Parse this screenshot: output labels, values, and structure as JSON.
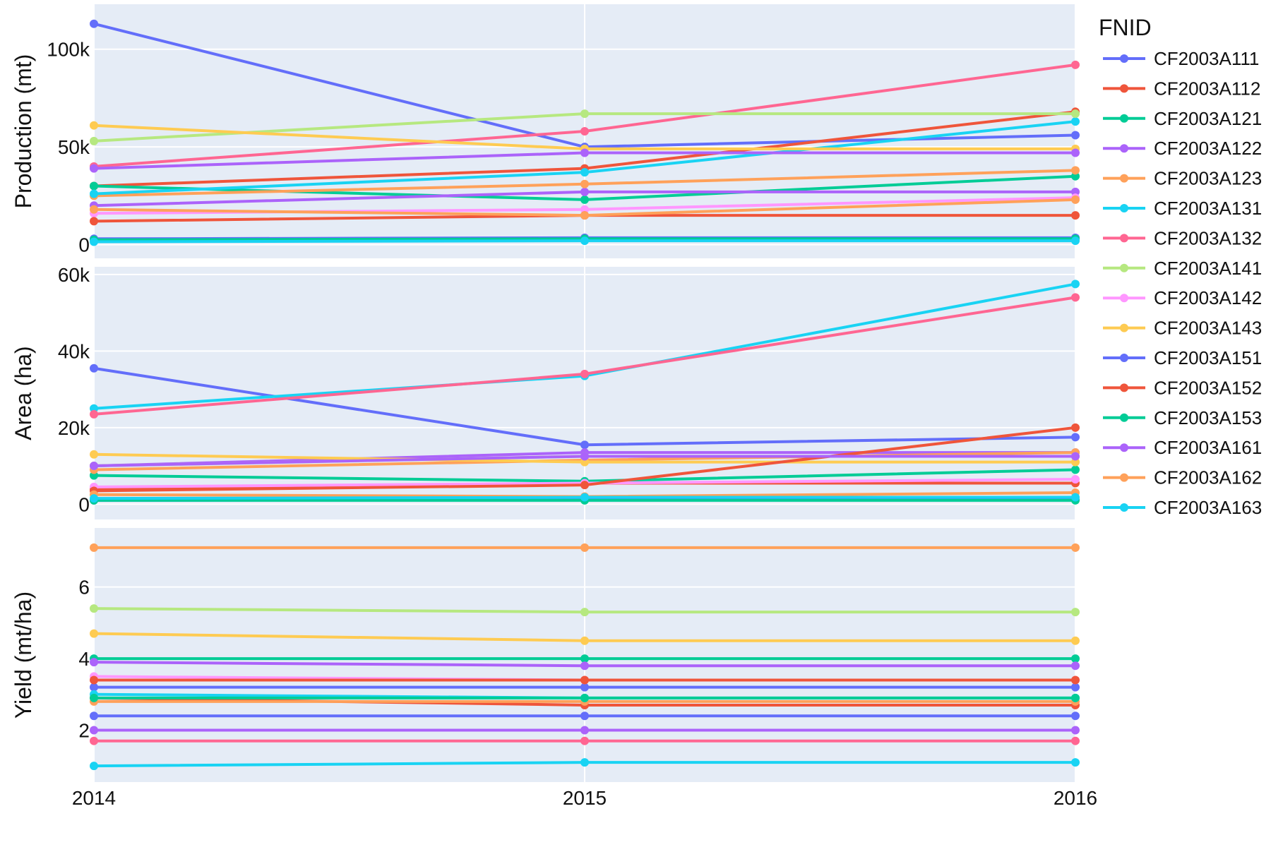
{
  "chart_data": {
    "type": "line",
    "x": [
      2014,
      2015,
      2016
    ],
    "x_tick_labels": [
      "2014",
      "2015",
      "2016"
    ],
    "legend": {
      "title": "FNID",
      "placement": "right"
    },
    "grid": true,
    "panels": [
      {
        "key": "production",
        "ylabel": "Production (mt)",
        "ylim": [
          -7000,
          123000
        ],
        "yticks": [
          0,
          50000,
          100000
        ],
        "ytick_labels": [
          "0",
          "50k",
          "100k"
        ]
      },
      {
        "key": "area",
        "ylabel": "Area (ha)",
        "ylim": [
          -4000,
          62000
        ],
        "yticks": [
          0,
          20000,
          40000,
          60000
        ],
        "ytick_labels": [
          "0",
          "20k",
          "40k",
          "60k"
        ]
      },
      {
        "key": "yield",
        "ylabel": "Yield (mt/ha)",
        "ylim": [
          0.55,
          7.65
        ],
        "yticks": [
          2,
          4,
          6
        ],
        "ytick_labels": [
          "2",
          "4",
          "6"
        ]
      }
    ],
    "series": [
      {
        "name": "CF2003A111",
        "color": "#636efa",
        "production": [
          113000,
          50000,
          56000
        ],
        "area": [
          35500,
          15500,
          17500
        ],
        "yield": [
          3.2,
          3.2,
          3.2
        ]
      },
      {
        "name": "CF2003A112",
        "color": "#ef553b",
        "production": [
          30000,
          39000,
          68000
        ],
        "area": [
          4000,
          5500,
          5500
        ],
        "yield": [
          2.9,
          2.7,
          2.7
        ]
      },
      {
        "name": "CF2003A121",
        "color": "#00cc96",
        "production": [
          30000,
          23000,
          35000
        ],
        "area": [
          7500,
          6000,
          9000
        ],
        "yield": [
          4.0,
          4.0,
          4.0
        ]
      },
      {
        "name": "CF2003A122",
        "color": "#ab63fa",
        "production": [
          20000,
          27000,
          27000
        ],
        "area": [
          10000,
          13500,
          13500
        ],
        "yield": [
          2.0,
          2.0,
          2.0
        ]
      },
      {
        "name": "CF2003A123",
        "color": "#ffa15a",
        "production": [
          25000,
          31000,
          38000
        ],
        "area": [
          9000,
          11500,
          13500
        ],
        "yield": [
          2.8,
          2.8,
          2.8
        ]
      },
      {
        "name": "CF2003A131",
        "color": "#19d3f3",
        "production": [
          26000,
          37000,
          63000
        ],
        "area": [
          25000,
          33500,
          57500
        ],
        "yield": [
          3.0,
          2.9,
          2.9
        ]
      },
      {
        "name": "CF2003A132",
        "color": "#ff6692",
        "production": [
          40000,
          58000,
          92000
        ],
        "area": [
          23500,
          34000,
          54000
        ],
        "yield": [
          1.7,
          1.7,
          1.7
        ]
      },
      {
        "name": "CF2003A141",
        "color": "#b6e880",
        "production": [
          53000,
          67000,
          67000
        ],
        "area": [
          10000,
          12500,
          12500
        ],
        "yield": [
          5.4,
          5.3,
          5.3
        ]
      },
      {
        "name": "CF2003A142",
        "color": "#ff97ff",
        "production": [
          16000,
          18000,
          24000
        ],
        "area": [
          4500,
          5500,
          6500
        ],
        "yield": [
          3.5,
          3.4,
          3.4
        ]
      },
      {
        "name": "CF2003A143",
        "color": "#fecb52",
        "production": [
          61000,
          49000,
          49000
        ],
        "area": [
          13000,
          11000,
          11000
        ],
        "yield": [
          4.7,
          4.5,
          4.5
        ]
      },
      {
        "name": "CF2003A151",
        "color": "#636efa",
        "production": [
          3000,
          3500,
          3500
        ],
        "area": [
          1000,
          1200,
          1200
        ],
        "yield": [
          2.4,
          2.4,
          2.4
        ]
      },
      {
        "name": "CF2003A152",
        "color": "#ef553b",
        "production": [
          12000,
          15000,
          15000
        ],
        "area": [
          3500,
          5000,
          20000
        ],
        "yield": [
          3.4,
          3.4,
          3.4
        ]
      },
      {
        "name": "CF2003A153",
        "color": "#00cc96",
        "production": [
          2500,
          3000,
          3000
        ],
        "area": [
          1000,
          1000,
          1000
        ],
        "yield": [
          2.9,
          2.9,
          2.9
        ]
      },
      {
        "name": "CF2003A161",
        "color": "#ab63fa",
        "production": [
          39000,
          47000,
          47000
        ],
        "area": [
          10000,
          12500,
          12500
        ],
        "yield": [
          3.9,
          3.8,
          3.8
        ]
      },
      {
        "name": "CF2003A162",
        "color": "#ffa15a",
        "production": [
          18000,
          15000,
          23000
        ],
        "area": [
          2500,
          2000,
          3000
        ],
        "yield": [
          7.1,
          7.1,
          7.1
        ]
      },
      {
        "name": "CF2003A163",
        "color": "#19d3f3",
        "production": [
          1500,
          2000,
          2000
        ],
        "area": [
          1500,
          1800,
          1800
        ],
        "yield": [
          1.0,
          1.1,
          1.1
        ]
      }
    ]
  }
}
